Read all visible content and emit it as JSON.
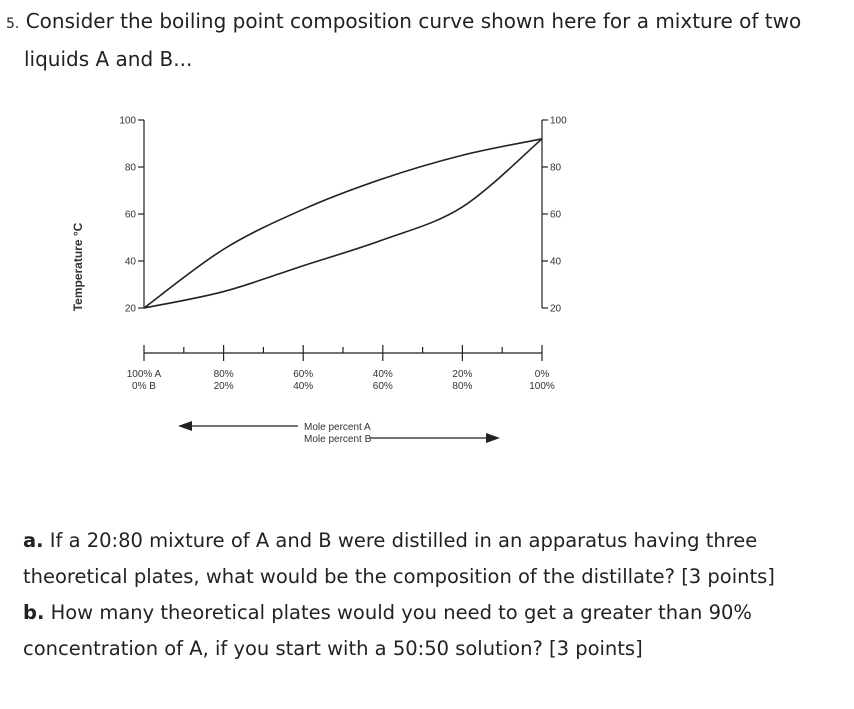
{
  "question": {
    "number": "5.",
    "text_line1": "Consider the boiling point composition curve shown here for a mixture of two",
    "text_line2": "liquids A and B..."
  },
  "chart_data": {
    "type": "line",
    "ylabel": "Temperature °C",
    "y_ticks": [
      "100",
      "80",
      "60",
      "40",
      "20"
    ],
    "ylim": [
      20,
      100
    ],
    "x_ticks": [
      {
        "top": "100% A",
        "bottom": "0% B"
      },
      {
        "top": "80%",
        "bottom": "20%"
      },
      {
        "top": "60%",
        "bottom": "40%"
      },
      {
        "top": "40%",
        "bottom": "60%"
      },
      {
        "top": "20%",
        "bottom": "80%"
      },
      {
        "top": "0%",
        "bottom": "100%"
      }
    ],
    "xlabel_line1": "Mole percent A",
    "xlabel_line2": "Mole percent B",
    "series": [
      {
        "x": [
          100,
          80,
          60,
          40,
          20,
          0
        ],
        "y": [
          20,
          45,
          62,
          75,
          85,
          92
        ]
      },
      {
        "x": [
          100,
          80,
          60,
          40,
          20,
          0
        ],
        "y": [
          20,
          27,
          38,
          49,
          63,
          92
        ]
      }
    ]
  },
  "parts": {
    "a_label": "a.",
    "a_text_line1": "If a 20:80 mixture of A and B were distilled in an apparatus having three",
    "a_text_line2": "theoretical plates, what would be the composition of the distillate? [3 points]",
    "b_label": "b.",
    "b_text_line1": "How many theoretical plates would you need to get a greater than 90%",
    "b_text_line2": "concentration of A, if you start with a 50:50 solution? [3 points]"
  }
}
